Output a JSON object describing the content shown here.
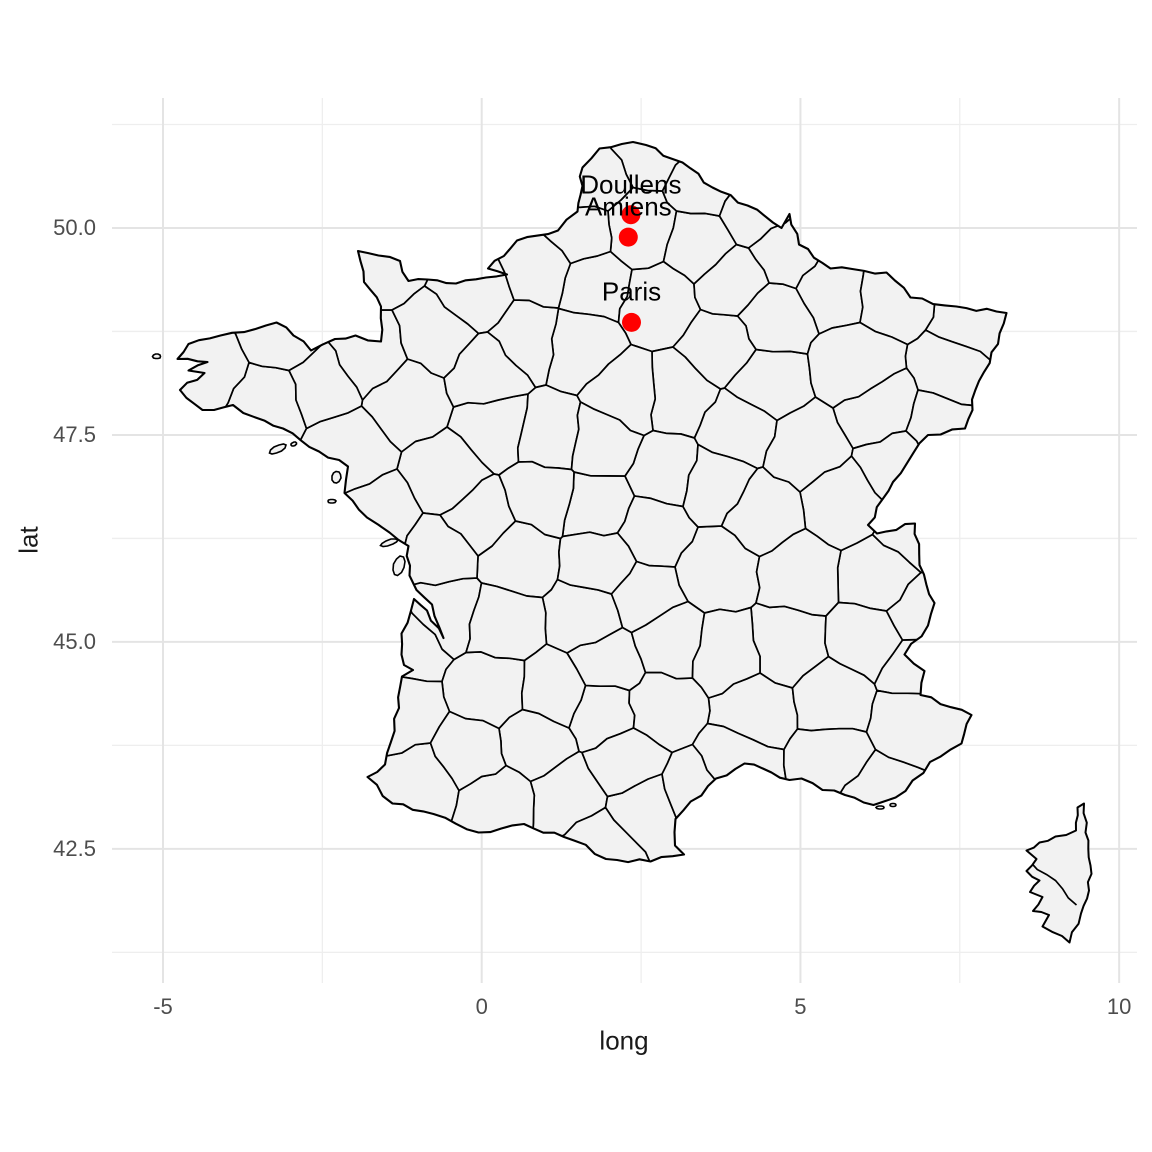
{
  "axes": {
    "x": {
      "title": "long",
      "ticks": [
        {
          "label": "-5",
          "value": -5
        },
        {
          "label": "0",
          "value": 0
        },
        {
          "label": "5",
          "value": 5
        },
        {
          "label": "10",
          "value": 10
        }
      ]
    },
    "y": {
      "title": "lat",
      "ticks": [
        {
          "label": "42.5",
          "value": 42.5
        },
        {
          "label": "45.0",
          "value": 45.0
        },
        {
          "label": "47.5",
          "value": 47.5
        },
        {
          "label": "50.0",
          "value": 50.0
        }
      ]
    }
  },
  "map": {
    "region": "France",
    "subdivisions": "departments",
    "fill": "#f2f2f2",
    "border_color": "#000000",
    "background": "#ffffff"
  },
  "style": {
    "grid_major_color": "#e4e4e4",
    "grid_minor_color": "#eeeeee",
    "tick_label_color": "#4d4d4d",
    "axis_title_color": "#1a1a1a",
    "point_color": "#ff0000",
    "city_label_color": "#000000"
  },
  "chart_data": {
    "type": "map",
    "region": "France with department boundaries",
    "points": [
      {
        "label": "Doullens",
        "long": 2.34,
        "lat": 50.16
      },
      {
        "label": "Amiens",
        "long": 2.3,
        "lat": 49.89
      },
      {
        "label": "Paris",
        "long": 2.35,
        "lat": 48.86
      }
    ],
    "point_color": "#ff0000",
    "xlabel": "long",
    "ylabel": "lat",
    "x_ticks": [
      -5,
      0,
      5,
      10
    ],
    "y_ticks": [
      42.5,
      45.0,
      47.5,
      50.0
    ],
    "xlim": [
      -5.8,
      10.28
    ],
    "ylim": [
      40.88,
      51.57
    ],
    "grid": "on",
    "legend": "none"
  }
}
